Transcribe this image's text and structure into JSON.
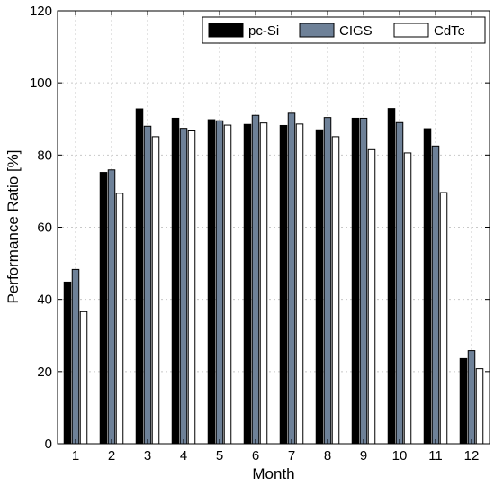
{
  "chart_data": {
    "type": "bar",
    "title": "",
    "xlabel": "Month",
    "ylabel": "Performance Ratio [%]",
    "categories": [
      "1",
      "2",
      "3",
      "4",
      "5",
      "6",
      "7",
      "8",
      "9",
      "10",
      "11",
      "12"
    ],
    "ylim": [
      0,
      120
    ],
    "yticks": [
      "0",
      "20",
      "40",
      "60",
      "80",
      "100",
      "120"
    ],
    "grid": true,
    "legend_position": "top-right",
    "series": [
      {
        "name": "pc-Si",
        "color": "#000000",
        "values": [
          44.8,
          75.2,
          92.8,
          90.2,
          89.8,
          88.5,
          88.2,
          87.0,
          90.2,
          92.9,
          87.3,
          23.6
        ]
      },
      {
        "name": "CIGS",
        "color": "#6e8198",
        "values": [
          48.3,
          75.9,
          88.0,
          87.4,
          89.5,
          91.0,
          91.6,
          90.4,
          90.2,
          89.0,
          82.5,
          25.8
        ]
      },
      {
        "name": "CdTe",
        "color": "#ffffff",
        "values": [
          36.6,
          69.4,
          85.1,
          86.7,
          88.3,
          88.9,
          88.6,
          85.1,
          81.5,
          80.6,
          69.6,
          20.8
        ]
      }
    ]
  }
}
